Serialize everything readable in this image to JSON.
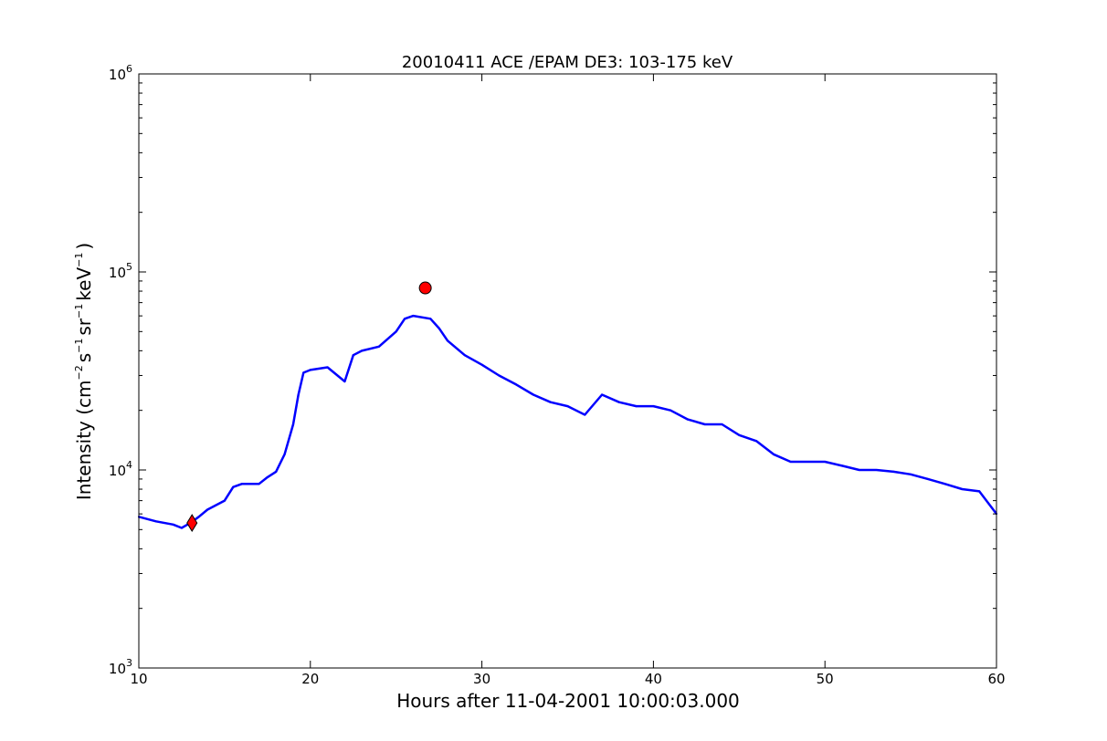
{
  "chart_data": {
    "type": "line",
    "title": "20010411 ACE /EPAM DE3: 103-175 keV",
    "xlabel": "Hours after 11-04-2001 10:00:03.000",
    "ylabel": {
      "prefix": "Intensity (cm",
      "exp1": "−2",
      "mid1": "s",
      "exp2": "−1",
      "mid2": "sr",
      "exp3": "−1",
      "mid3": "keV",
      "exp4": "−1",
      "suffix": ")"
    },
    "xlim": [
      10,
      60
    ],
    "ylim": [
      1000,
      1000000
    ],
    "yscale": "log",
    "x_ticks": [
      "10",
      "20",
      "30",
      "40",
      "50",
      "60"
    ],
    "y_ticks": [
      {
        "base": "10",
        "exp": "3",
        "value": 1000
      },
      {
        "base": "10",
        "exp": "4",
        "value": 10000
      },
      {
        "base": "10",
        "exp": "5",
        "value": 100000
      },
      {
        "base": "10",
        "exp": "6",
        "value": 1000000
      }
    ],
    "grid": false,
    "series": [
      {
        "color": "#000000",
        "x": [
          10,
          11,
          12,
          12.5,
          13,
          13.5,
          14,
          15,
          15.5,
          16,
          17,
          17.5,
          18,
          18.5,
          19,
          19.3,
          19.6,
          20,
          21,
          22,
          22.5,
          23,
          24,
          25,
          25.5,
          26,
          27,
          27.5,
          28,
          29,
          30,
          31,
          32,
          33,
          34,
          35,
          36,
          37,
          38,
          39,
          40,
          41,
          42,
          43,
          44,
          45,
          46,
          47,
          48,
          49,
          50,
          51,
          52,
          53,
          54,
          55,
          56,
          57,
          58,
          59,
          60
        ],
        "values": [
          5800,
          5500,
          5300,
          5100,
          5400,
          5800,
          6300,
          7000,
          8200,
          8500,
          8500,
          9200,
          9800,
          12000,
          17000,
          24000,
          31000,
          32000,
          33000,
          28000,
          38000,
          40000,
          42000,
          50000,
          58000,
          60000,
          58000,
          52000,
          45000,
          38000,
          34000,
          30000,
          27000,
          24000,
          22000,
          21000,
          19000,
          24000,
          22000,
          21000,
          21000,
          20000,
          18000,
          17000,
          17000,
          15000,
          14000,
          12000,
          11000,
          11000,
          11000,
          10500,
          10000,
          10000,
          9800,
          9500,
          9000,
          8500,
          8000,
          7800,
          6000
        ]
      },
      {
        "color": "#0000ff",
        "x": [
          10,
          11,
          12,
          12.5,
          13,
          13.5,
          14,
          15,
          15.5,
          16,
          17,
          17.5,
          18,
          18.5,
          19,
          19.3,
          19.6,
          20,
          21,
          22,
          22.5,
          23,
          24,
          25,
          25.5,
          26,
          27,
          27.5,
          28,
          29,
          30,
          31,
          32,
          33,
          34,
          35,
          36,
          37,
          38,
          39,
          40,
          41,
          42,
          43,
          44,
          45,
          46,
          47,
          48,
          49,
          50,
          51,
          52,
          53,
          54,
          55,
          56,
          57,
          58,
          59,
          60
        ],
        "values": [
          5800,
          5500,
          5300,
          5100,
          5400,
          5800,
          6300,
          7000,
          8200,
          8500,
          8500,
          9200,
          9800,
          12000,
          17000,
          24000,
          31000,
          32000,
          33000,
          28000,
          38000,
          40000,
          42000,
          50000,
          58000,
          60000,
          58000,
          52000,
          45000,
          38000,
          34000,
          30000,
          27000,
          24000,
          22000,
          21000,
          19000,
          24000,
          22000,
          21000,
          21000,
          20000,
          18000,
          17000,
          17000,
          15000,
          14000,
          12000,
          11000,
          11000,
          11000,
          10500,
          10000,
          10000,
          9800,
          9500,
          9000,
          8500,
          8000,
          7800,
          6000
        ]
      }
    ],
    "markers": [
      {
        "shape": "circle",
        "color": "#ff0000",
        "x": 26.7,
        "y": 83000
      },
      {
        "shape": "diamond",
        "color": "#ff0000",
        "x": 13.1,
        "y": 5400
      }
    ]
  }
}
